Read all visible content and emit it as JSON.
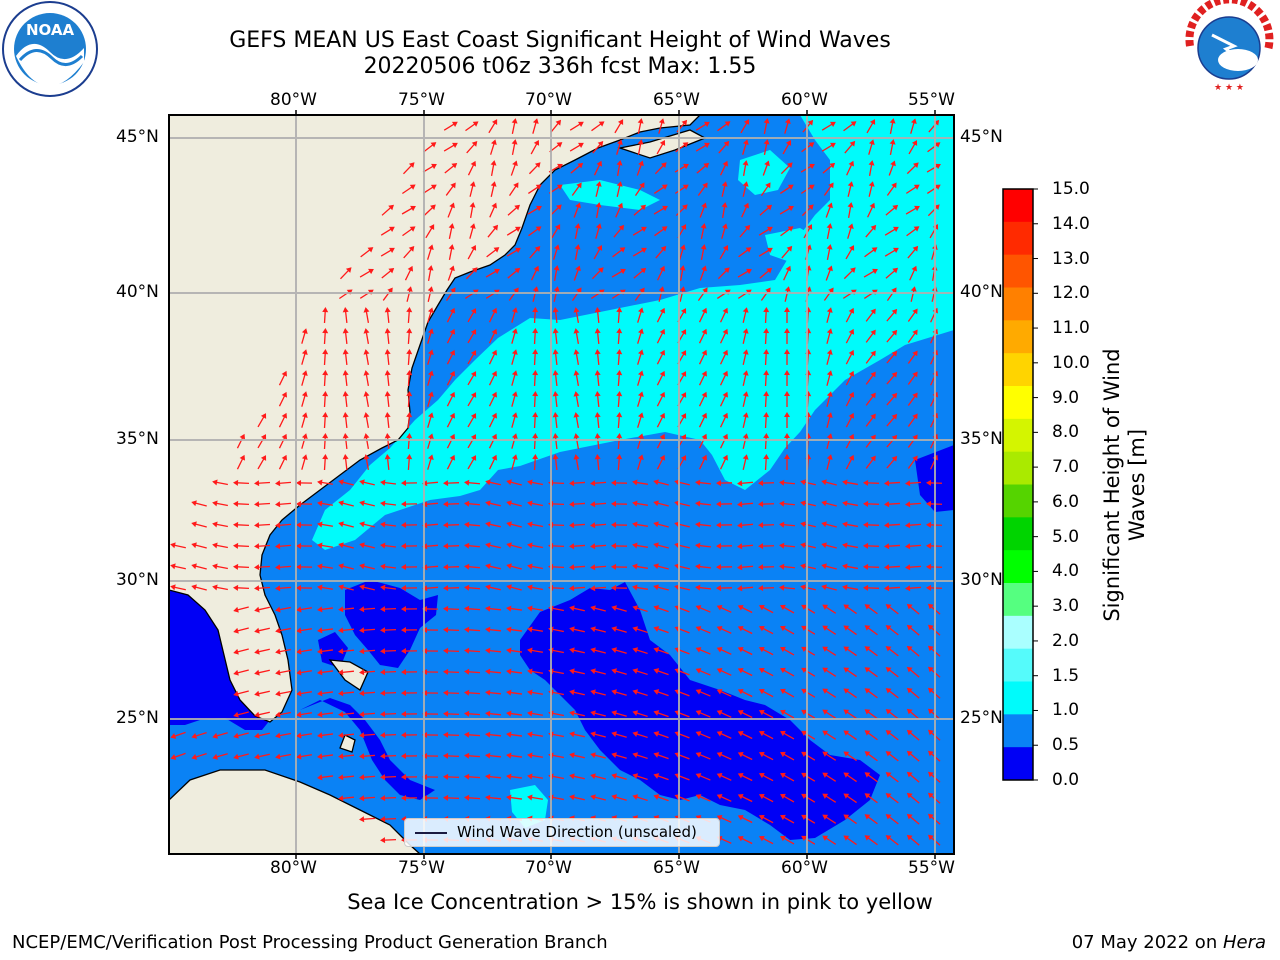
{
  "title": {
    "line1": "GEFS MEAN US East Coast Significant Height of Wind Waves",
    "line2": "20220506 t06z 336h fcst   Max: 1.55"
  },
  "map": {
    "lon_ticks": [
      "80°W",
      "75°W",
      "70°W",
      "65°W",
      "60°W",
      "55°W"
    ],
    "lat_ticks": [
      "45°N",
      "40°N",
      "35°N",
      "30°N",
      "25°N"
    ],
    "lon_range": [
      -85,
      -54.5
    ],
    "lat_range": [
      20.5,
      46
    ],
    "legend_label": "Wind Wave Direction (unscaled)",
    "colors": {
      "land": "#efedde",
      "band_0_0_5": "#0000f5",
      "band_0_5_1_0": "#0a82f5",
      "band_1_0_1_5": "#00fbfb",
      "arrow": "#ff1a1a",
      "grid": "#b0b0b0"
    }
  },
  "colorbar": {
    "title": "Significant Height of Wind Waves [m]",
    "labels": [
      "15.0",
      "14.0",
      "13.0",
      "12.0",
      "11.0",
      "10.0",
      "9.0",
      "8.0",
      "7.0",
      "6.0",
      "5.0",
      "4.0",
      "3.0",
      "2.0",
      "1.5",
      "1.0",
      "0.5",
      "0.0"
    ],
    "colors": [
      "#ff0000",
      "#ff2a00",
      "#ff5500",
      "#ff8000",
      "#ffaa00",
      "#ffd400",
      "#ffff00",
      "#d4f500",
      "#aaea00",
      "#55d400",
      "#00d400",
      "#00ff00",
      "#55ff80",
      "#aaffff",
      "#55fbfb",
      "#00fbfb",
      "#0a82f5",
      "#0000f5"
    ]
  },
  "logos": {
    "noaa": "NOAA",
    "nws_text": "NATIONAL WEATHER SERVICE",
    "noaa_ring_text": "NATIONAL OCEANIC AND ATMOSPHERIC ADMINISTRATION · U.S. DEPARTMENT OF COMMERCE"
  },
  "note": "Sea Ice Concentration > 15% is shown in pink to yellow",
  "footer": {
    "left": "NCEP/EMC/Verification Post Processing Product Generation Branch",
    "right_date": "07 May 2022 on ",
    "right_host": "Hera"
  }
}
